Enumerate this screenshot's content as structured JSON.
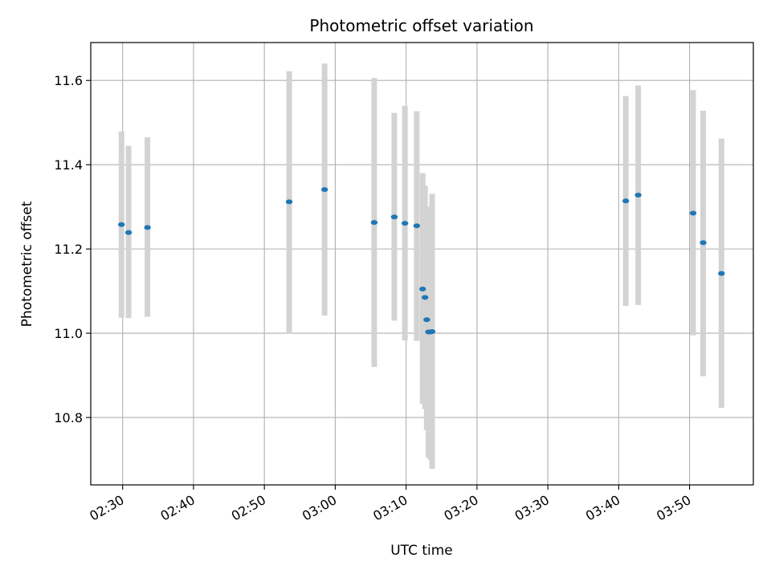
{
  "chart_data": {
    "type": "scatter",
    "title": "Photometric offset variation",
    "xlabel": "UTC time",
    "ylabel": "Photometric offset",
    "x_unit": "HH:MM UTC",
    "xlim": [
      "02:25:30",
      "03:59:00"
    ],
    "ylim": [
      10.64,
      11.69
    ],
    "grid": true,
    "x_ticks": [
      "02:30",
      "02:40",
      "02:50",
      "03:00",
      "03:10",
      "03:20",
      "03:30",
      "03:40",
      "03:50"
    ],
    "y_ticks": [
      "10.8",
      "11.0",
      "11.2",
      "11.4",
      "11.6"
    ],
    "errorbar_color": "#d3d3d3",
    "marker_color": "#1f77b4",
    "points": [
      {
        "x": "02:29:50",
        "y": 11.258,
        "ylow": 11.037,
        "yhigh": 11.479
      },
      {
        "x": "02:30:50",
        "y": 11.239,
        "ylow": 11.036,
        "yhigh": 11.445
      },
      {
        "x": "02:33:30",
        "y": 11.251,
        "ylow": 11.039,
        "yhigh": 11.465
      },
      {
        "x": "02:53:30",
        "y": 11.312,
        "ylow": 11.0,
        "yhigh": 11.622
      },
      {
        "x": "02:58:30",
        "y": 11.341,
        "ylow": 11.042,
        "yhigh": 11.64
      },
      {
        "x": "03:05:30",
        "y": 11.263,
        "ylow": 10.92,
        "yhigh": 11.606
      },
      {
        "x": "03:08:20",
        "y": 11.276,
        "ylow": 11.03,
        "yhigh": 11.523
      },
      {
        "x": "03:09:50",
        "y": 11.261,
        "ylow": 10.983,
        "yhigh": 11.54
      },
      {
        "x": "03:11:30",
        "y": 11.255,
        "ylow": 10.982,
        "yhigh": 11.527
      },
      {
        "x": "03:12:20",
        "y": 11.105,
        "ylow": 10.832,
        "yhigh": 11.38
      },
      {
        "x": "03:12:40",
        "y": 11.085,
        "ylow": 10.82,
        "yhigh": 11.35
      },
      {
        "x": "03:12:55",
        "y": 11.032,
        "ylow": 10.77,
        "yhigh": 11.3
      },
      {
        "x": "03:13:10",
        "y": 11.003,
        "ylow": 10.705,
        "yhigh": 11.3
      },
      {
        "x": "03:13:25",
        "y": 11.003,
        "ylow": 10.7,
        "yhigh": 11.3
      },
      {
        "x": "03:13:40",
        "y": 11.004,
        "ylow": 10.678,
        "yhigh": 11.331
      },
      {
        "x": "03:41:00",
        "y": 11.314,
        "ylow": 11.065,
        "yhigh": 11.563
      },
      {
        "x": "03:42:45",
        "y": 11.328,
        "ylow": 11.067,
        "yhigh": 11.588
      },
      {
        "x": "03:50:30",
        "y": 11.285,
        "ylow": 10.995,
        "yhigh": 11.577
      },
      {
        "x": "03:51:55",
        "y": 11.215,
        "ylow": 10.898,
        "yhigh": 11.528
      },
      {
        "x": "03:54:30",
        "y": 11.142,
        "ylow": 10.823,
        "yhigh": 11.462
      }
    ]
  }
}
